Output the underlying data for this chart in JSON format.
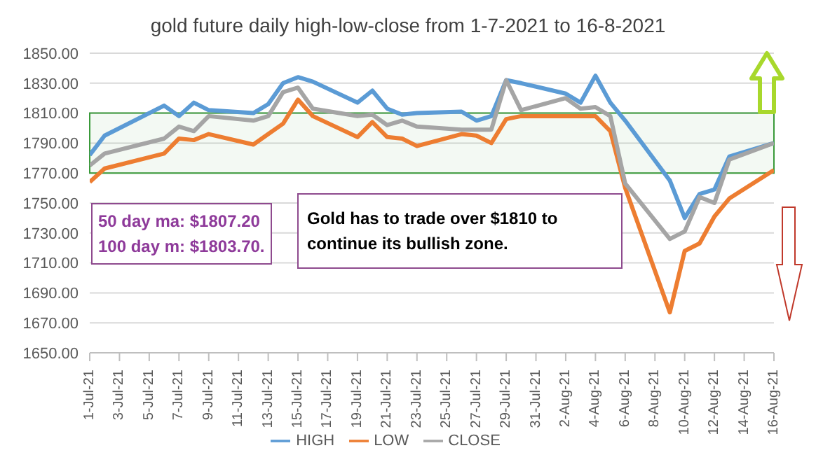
{
  "chart_data": {
    "type": "line",
    "title": "gold future daily high-low-close from 1-7-2021 to 16-8-2021",
    "x": [
      "2021-07-01",
      "2021-07-02",
      "2021-07-06",
      "2021-07-07",
      "2021-07-08",
      "2021-07-09",
      "2021-07-12",
      "2021-07-13",
      "2021-07-14",
      "2021-07-15",
      "2021-07-16",
      "2021-07-19",
      "2021-07-20",
      "2021-07-21",
      "2021-07-22",
      "2021-07-23",
      "2021-07-26",
      "2021-07-27",
      "2021-07-28",
      "2021-07-29",
      "2021-07-30",
      "2021-08-02",
      "2021-08-03",
      "2021-08-04",
      "2021-08-05",
      "2021-08-06",
      "2021-08-09",
      "2021-08-10",
      "2021-08-11",
      "2021-08-12",
      "2021-08-13",
      "2021-08-16"
    ],
    "series": [
      {
        "name": "HIGH",
        "color": "#5b9bd5",
        "values": [
          1782,
          1795,
          1815,
          1808,
          1817,
          1812,
          1810,
          1816,
          1830,
          1834,
          1831,
          1817,
          1825,
          1813,
          1809,
          1810,
          1811,
          1805,
          1808,
          1832,
          1830,
          1823,
          1817,
          1835,
          1817,
          1805,
          1765,
          1740,
          1756,
          1759,
          1781,
          1790
        ]
      },
      {
        "name": "LOW",
        "color": "#ed7d31",
        "values": [
          1764,
          1773,
          1783,
          1793,
          1792,
          1796,
          1789,
          1796,
          1803,
          1819,
          1808,
          1794,
          1804,
          1794,
          1793,
          1788,
          1796,
          1795,
          1790,
          1806,
          1808,
          1808,
          1808,
          1808,
          1798,
          1760,
          1677,
          1718,
          1723,
          1741,
          1753,
          1772
        ]
      },
      {
        "name": "CLOSE",
        "color": "#a5a5a5",
        "values": [
          1775,
          1783,
          1793,
          1801,
          1798,
          1808,
          1805,
          1808,
          1824,
          1827,
          1813,
          1808,
          1809,
          1802,
          1805,
          1801,
          1799,
          1799,
          1799,
          1832,
          1812,
          1820,
          1813,
          1814,
          1808,
          1763,
          1726,
          1731,
          1754,
          1750,
          1779,
          1790
        ]
      }
    ],
    "xlim": [
      "2021-07-01",
      "2021-08-16"
    ],
    "xticks": [
      {
        "value": "2021-07-01",
        "label": "1-Jul-21"
      },
      {
        "value": "2021-07-03",
        "label": "3-Jul-21"
      },
      {
        "value": "2021-07-05",
        "label": "5-Jul-21"
      },
      {
        "value": "2021-07-07",
        "label": "7-Jul-21"
      },
      {
        "value": "2021-07-09",
        "label": "9-Jul-21"
      },
      {
        "value": "2021-07-11",
        "label": "11-Jul-21"
      },
      {
        "value": "2021-07-13",
        "label": "13-Jul-21"
      },
      {
        "value": "2021-07-15",
        "label": "15-Jul-21"
      },
      {
        "value": "2021-07-17",
        "label": "17-Jul-21"
      },
      {
        "value": "2021-07-19",
        "label": "19-Jul-21"
      },
      {
        "value": "2021-07-21",
        "label": "21-Jul-21"
      },
      {
        "value": "2021-07-23",
        "label": "23-Jul-21"
      },
      {
        "value": "2021-07-25",
        "label": "25-Jul-21"
      },
      {
        "value": "2021-07-27",
        "label": "27-Jul-21"
      },
      {
        "value": "2021-07-29",
        "label": "29-Jul-21"
      },
      {
        "value": "2021-07-31",
        "label": "31-Jul-21"
      },
      {
        "value": "2021-08-02",
        "label": "2-Aug-21"
      },
      {
        "value": "2021-08-04",
        "label": "4-Aug-21"
      },
      {
        "value": "2021-08-06",
        "label": "6-Aug-21"
      },
      {
        "value": "2021-08-08",
        "label": "8-Aug-21"
      },
      {
        "value": "2021-08-10",
        "label": "10-Aug-21"
      },
      {
        "value": "2021-08-12",
        "label": "12-Aug-21"
      },
      {
        "value": "2021-08-14",
        "label": "14-Aug-21"
      },
      {
        "value": "2021-08-16",
        "label": "16-Aug-21"
      }
    ],
    "ylim": [
      1650,
      1850
    ],
    "yticks": [
      {
        "value": 1650,
        "label": "1650.00"
      },
      {
        "value": 1670,
        "label": "1670.00"
      },
      {
        "value": 1690,
        "label": "1690.00"
      },
      {
        "value": 1710,
        "label": "1710.00"
      },
      {
        "value": 1730,
        "label": "1730.00"
      },
      {
        "value": 1750,
        "label": "1750.00"
      },
      {
        "value": 1770,
        "label": "1770.00"
      },
      {
        "value": 1790,
        "label": "1790.00"
      },
      {
        "value": 1810,
        "label": "1810.00"
      },
      {
        "value": 1830,
        "label": "1830.00"
      },
      {
        "value": 1850,
        "label": "1850.00"
      }
    ],
    "bands": [
      {
        "axis": "y",
        "from": 1770,
        "to": 1810,
        "color": "#3a9a3a"
      }
    ],
    "annotations": [
      "50 day ma: $1807.20\n100 day m: $1803.70.",
      "Gold has to trade over $1810 to\ncontinue its bullish zone."
    ],
    "grid": "y",
    "legend": "bottom",
    "marker": "none",
    "line_style": "solid"
  }
}
